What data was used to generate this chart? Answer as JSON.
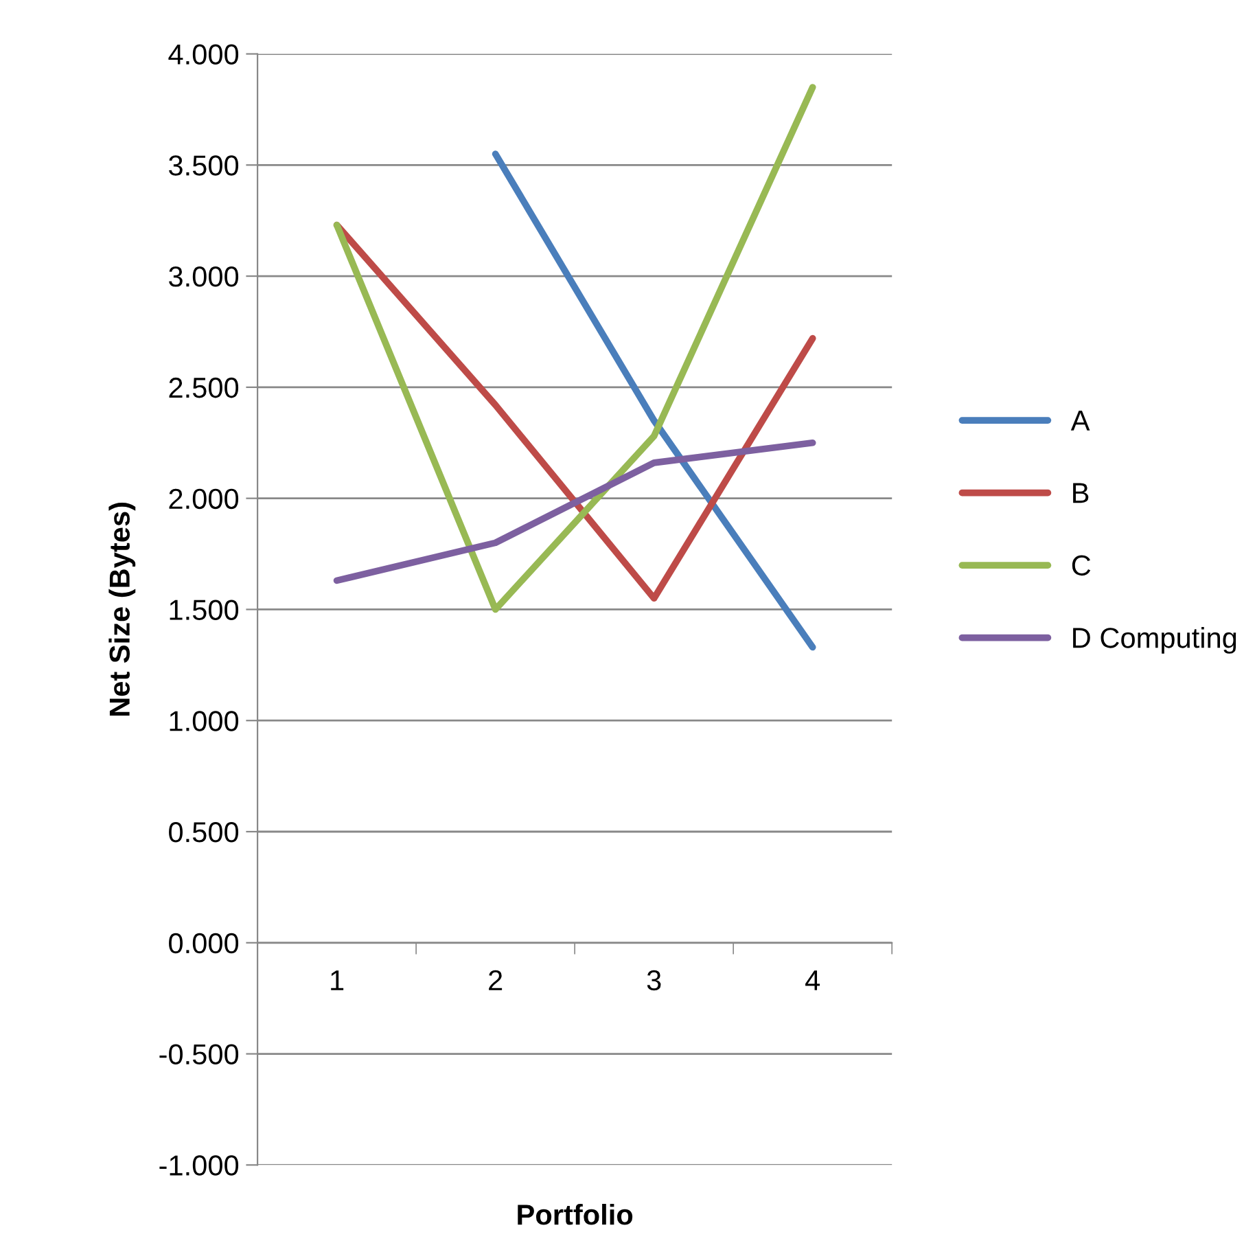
{
  "chart_data": {
    "type": "line",
    "xlabel": "Portfolio",
    "ylabel": "Net Size (Bytes)",
    "categories": [
      "1",
      "2",
      "3",
      "4"
    ],
    "series": [
      {
        "name": "A",
        "color": "#4a7ebb",
        "values": [
          null,
          3.55,
          2.35,
          1.33
        ]
      },
      {
        "name": "B",
        "color": "#be4b48",
        "values": [
          3.23,
          2.42,
          1.55,
          2.72
        ]
      },
      {
        "name": "C",
        "color": "#98b954",
        "values": [
          3.23,
          1.5,
          2.28,
          3.85
        ]
      },
      {
        "name": "D Computing",
        "color": "#7d60a0",
        "values": [
          1.63,
          1.8,
          2.16,
          2.25
        ]
      }
    ],
    "ylim": [
      -1,
      4
    ],
    "yticks": [
      {
        "value": -1,
        "label": "-1.000"
      },
      {
        "value": -0.5,
        "label": "-0.500"
      },
      {
        "value": 0,
        "label": "0.000"
      },
      {
        "value": 0.5,
        "label": "0.500"
      },
      {
        "value": 1,
        "label": "1.000"
      },
      {
        "value": 1.5,
        "label": "1.500"
      },
      {
        "value": 2,
        "label": "2.000"
      },
      {
        "value": 2.5,
        "label": "2.500"
      },
      {
        "value": 3,
        "label": "3.000"
      },
      {
        "value": 3.5,
        "label": "3.500"
      },
      {
        "value": 4,
        "label": "4.000"
      }
    ],
    "grid": "y",
    "legend": "right",
    "marker": "none",
    "line_style": "solid"
  }
}
